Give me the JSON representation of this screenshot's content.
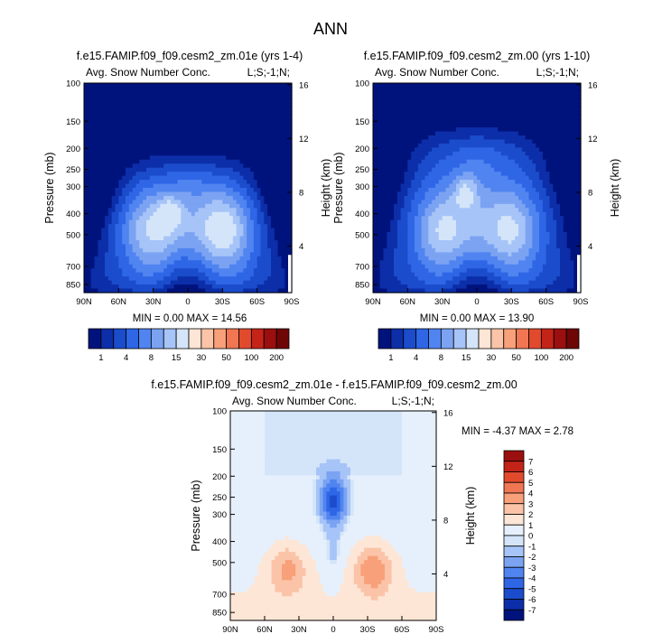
{
  "figure_title": "ANN",
  "colors": {
    "absolute_levels": [
      "#00137d",
      "#0c2ea8",
      "#1a4ccc",
      "#2e66e6",
      "#5084f0",
      "#7ba3f2",
      "#a6c4f7",
      "#d4e5fa",
      "#fde6d6",
      "#fbc4a8",
      "#f7a07a",
      "#f17653",
      "#e24a2e",
      "#c42418",
      "#9c0f0f",
      "#6f0606"
    ],
    "diff_levels": [
      "#00137d",
      "#0c2ea8",
      "#1a4ccc",
      "#2e66e6",
      "#5084f0",
      "#7ba3f2",
      "#a6c4f7",
      "#d4e5fa",
      "#e6f0fc",
      "#fde6d6",
      "#fbc4a8",
      "#f7a07a",
      "#f17653",
      "#e24a2e",
      "#c42418",
      "#9c0f0f"
    ]
  },
  "chart_data": [
    {
      "id": "panel1",
      "type": "heatmap",
      "title": "f.e15.FAMIP.f09_f09.cesm2_zm.01e (yrs 1-4)",
      "left_label": "Avg. Snow Number Conc.",
      "right_label": "L;S;-1;N;",
      "ylabel": "Pressure (mb)",
      "y2label": "Height (km)",
      "xticks": [
        "90N",
        "60N",
        "30N",
        "0",
        "30S",
        "60S",
        "90S"
      ],
      "yticks": [
        "100",
        "150",
        "200",
        "250",
        "300",
        "400",
        "500",
        "700",
        "850"
      ],
      "y2ticks": [
        "16",
        "12",
        "8",
        "4"
      ],
      "stats": "MIN =  0.00  MAX = 14.56",
      "xlim": [
        90,
        -90
      ],
      "ylim": [
        925,
        100
      ],
      "cbar_labels": [
        "1",
        "4",
        "8",
        "15",
        "30",
        "50",
        "100",
        "200"
      ],
      "field": {
        "kind": "abs",
        "peak_lats": [
          -32,
          33
        ],
        "peak_amp": [
          0.95,
          0.82
        ],
        "core_lat": 15,
        "core_p": 400,
        "top_p": 240
      }
    },
    {
      "id": "panel2",
      "type": "heatmap",
      "title": "f.e15.FAMIP.f09_f09.cesm2_zm.00 (yrs 1-10)",
      "left_label": "Avg. Snow Number Conc.",
      "right_label": "L;S;-1;N;",
      "ylabel": "Pressure (mb)",
      "y2label": "Height (km)",
      "xticks": [
        "90N",
        "60N",
        "30N",
        "0",
        "30S",
        "60S",
        "90S"
      ],
      "yticks": [
        "100",
        "150",
        "200",
        "250",
        "300",
        "400",
        "500",
        "700",
        "850"
      ],
      "y2ticks": [
        "16",
        "12",
        "8",
        "4"
      ],
      "stats": "MIN =  0.00  MAX = 13.90",
      "xlim": [
        90,
        -90
      ],
      "ylim": [
        925,
        100
      ],
      "cbar_labels": [
        "1",
        "4",
        "8",
        "15",
        "30",
        "50",
        "100",
        "200"
      ],
      "field": {
        "kind": "abs",
        "peak_lats": [
          -30,
          30
        ],
        "peak_amp": [
          0.82,
          0.8
        ],
        "core_lat": 10,
        "core_p": 320,
        "top_p": 180
      }
    },
    {
      "id": "panel3",
      "type": "heatmap",
      "title": "f.e15.FAMIP.f09_f09.cesm2_zm.01e - f.e15.FAMIP.f09_f09.cesm2_zm.00",
      "left_label": "Avg. Snow Number Conc.",
      "right_label": "L;S;-1;N;",
      "ylabel": "Pressure (mb)",
      "y2label": "Height (km)",
      "xticks": [
        "90N",
        "60N",
        "30N",
        "0",
        "30S",
        "60S",
        "90S"
      ],
      "yticks": [
        "100",
        "150",
        "200",
        "250",
        "300",
        "400",
        "500",
        "700",
        "850"
      ],
      "y2ticks": [
        "16",
        "12",
        "8",
        "4"
      ],
      "stats": "MIN = -4.37  MAX =  2.78",
      "xlim": [
        90,
        -90
      ],
      "ylim": [
        925,
        100
      ],
      "cbar_labels": [
        "7",
        "6",
        "5",
        "4",
        "3",
        "2",
        "1",
        "0",
        "-1",
        "-2",
        "-3",
        "-4",
        "-5",
        "-6",
        "-7"
      ],
      "field": {
        "kind": "diff"
      }
    }
  ]
}
